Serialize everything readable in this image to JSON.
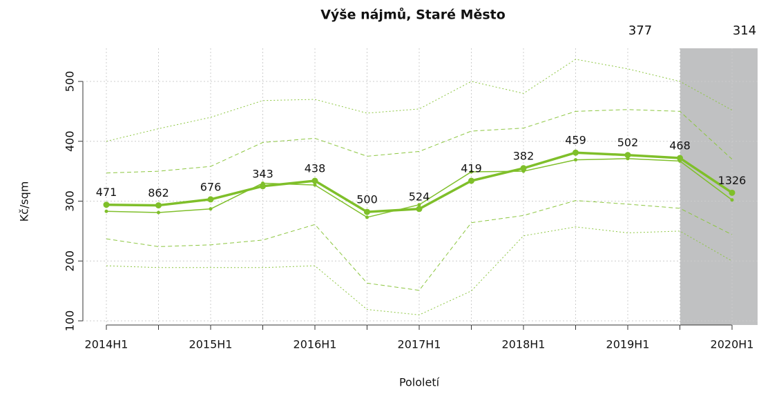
{
  "chart_data": {
    "type": "line",
    "title": "Výše nájmů, Staré Město",
    "x_label": "Pololetí",
    "y_label": "Kč/sqm",
    "categories": [
      "2014H1",
      null,
      "2015H1",
      null,
      "2016H1",
      null,
      "2017H1",
      null,
      "2018H1",
      null,
      "2019H1",
      null,
      "2020H1"
    ],
    "ylim": [
      100,
      500
    ],
    "yticks": [
      100,
      200,
      300,
      400,
      500
    ],
    "grid": true,
    "series": [
      {
        "color": "#8cc63f",
        "line_style": "dotted",
        "line_width": 1,
        "values": [
          400,
          421,
          440,
          468,
          470,
          447,
          454,
          500,
          480,
          537,
          521,
          500,
          452
        ]
      },
      {
        "color": "#8cc63f",
        "line_style": "dashed",
        "line_width": 1,
        "values": [
          347,
          350,
          358,
          398,
          405,
          375,
          383,
          417,
          422,
          450,
          453,
          450,
          370
        ]
      },
      {
        "color": "#7fbf2a",
        "line_style": "solid",
        "line_width": 1.5,
        "marker_size": 2.5,
        "values": [
          283,
          281,
          287,
          330,
          327,
          273,
          294,
          349,
          350,
          369,
          371,
          367,
          302
        ]
      },
      {
        "color": "#7fbf2a",
        "line_style": "solid",
        "line_width": 3.5,
        "marker_size": 4.5,
        "values": [
          294,
          293,
          303,
          325,
          334,
          282,
          287,
          334,
          355,
          381,
          377,
          372,
          314
        ]
      },
      {
        "color": "#8cc63f",
        "line_style": "dashed",
        "line_width": 1,
        "values": [
          237,
          224,
          227,
          235,
          261,
          163,
          151,
          264,
          276,
          301,
          295,
          288,
          244
        ]
      },
      {
        "color": "#8cc63f",
        "line_style": "dotted",
        "line_width": 1,
        "values": [
          192,
          189,
          189,
          189,
          192,
          119,
          110,
          150,
          242,
          257,
          247,
          250,
          200
        ]
      }
    ],
    "point_labels": [
      471,
      862,
      676,
      343,
      438,
      500,
      524,
      419,
      382,
      459,
      502,
      468,
      1326
    ],
    "top_labels": [
      null,
      null,
      null,
      null,
      null,
      null,
      null,
      null,
      null,
      null,
      377,
      null,
      314
    ]
  }
}
